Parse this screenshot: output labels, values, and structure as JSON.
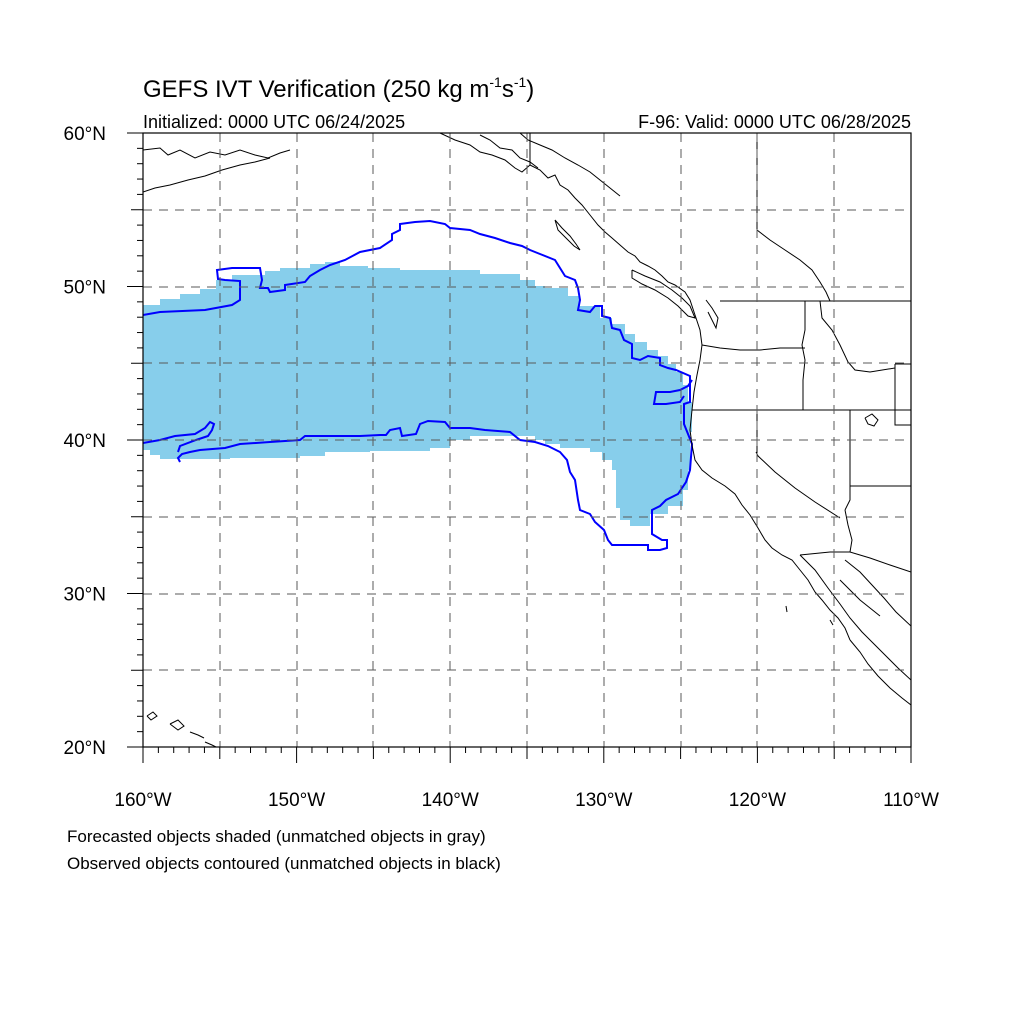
{
  "title": {
    "main": "GEFS IVT Verification (250 kg m",
    "exp1": "-1",
    "mid": "s",
    "exp2": "-1",
    "end": ")"
  },
  "subtitle_left": "Initialized: 0000 UTC 06/24/2025",
  "subtitle_right": "F-96: Valid: 0000 UTC 06/28/2025",
  "map": {
    "projection": "cylindrical-equidistant",
    "lon_range": [
      -160,
      -110
    ],
    "lat_range": [
      20,
      60
    ],
    "grid_lines": "dashed",
    "lon_labels": [
      {
        "lon": -160,
        "text": "160°W"
      },
      {
        "lon": -150,
        "text": "150°W"
      },
      {
        "lon": -140,
        "text": "140°W"
      },
      {
        "lon": -130,
        "text": "130°W"
      },
      {
        "lon": -120,
        "text": "120°W"
      },
      {
        "lon": -110,
        "text": "110°W"
      }
    ],
    "lat_labels": [
      {
        "lat": 60,
        "text": "60°N"
      },
      {
        "lat": 50,
        "text": "50°N"
      },
      {
        "lat": 40,
        "text": "40°N"
      },
      {
        "lat": 30,
        "text": "30°N"
      },
      {
        "lat": 20,
        "text": "20°N"
      }
    ],
    "forecast_fill_color": "#87ceeb",
    "observed_contour_color": "#0000ff",
    "coastline_color": "#000000"
  },
  "caption_line1": "Forecasted objects shaded (unmatched objects in gray)",
  "caption_line2": "Observed objects contoured (unmatched objects in black)"
}
